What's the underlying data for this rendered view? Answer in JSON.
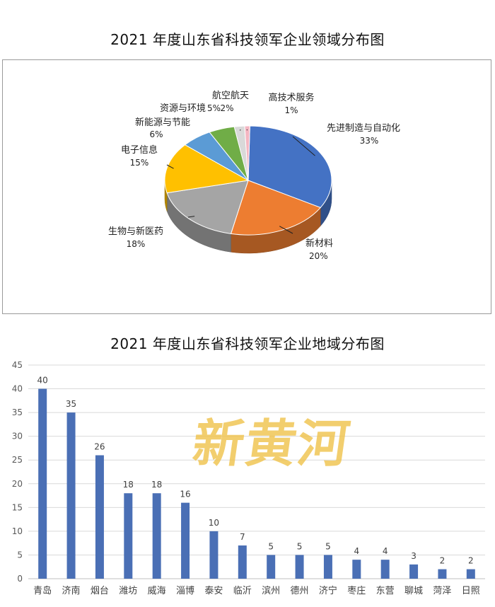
{
  "chart_data": [
    {
      "type": "pie",
      "title": "2021 年度山东省科技领军企业领域分布图",
      "slices": [
        {
          "name": "先进制造与自动化",
          "value": 33,
          "label": "33%",
          "color": "#4472c4"
        },
        {
          "name": "新材料",
          "value": 20,
          "label": "20%",
          "color": "#ed7d31"
        },
        {
          "name": "生物与新医药",
          "value": 18,
          "label": "18%",
          "color": "#a5a5a5"
        },
        {
          "name": "电子信息",
          "value": 15,
          "label": "15%",
          "color": "#ffc000"
        },
        {
          "name": "新能源与节能",
          "value": 6,
          "label": "6%",
          "color": "#5b9bd5"
        },
        {
          "name": "资源与环境",
          "value": 5,
          "label": "5%",
          "color": "#70ad47"
        },
        {
          "name": "航空航天",
          "value": 2,
          "label": "2%",
          "color": "#d9d9d9"
        },
        {
          "name": "高技术服务",
          "value": 1,
          "label": "1%",
          "color": "#f4b6c2"
        }
      ]
    },
    {
      "type": "bar",
      "title": "2021 年度山东省科技领军企业地域分布图",
      "categories": [
        "青岛",
        "济南",
        "烟台",
        "潍坊",
        "威海",
        "淄博",
        "泰安",
        "临沂",
        "滨州",
        "德州",
        "济宁",
        "枣庄",
        "东营",
        "聊城",
        "菏泽",
        "日照"
      ],
      "values": [
        40,
        35,
        26,
        18,
        18,
        16,
        10,
        7,
        5,
        5,
        5,
        4,
        4,
        3,
        2,
        2
      ],
      "ylim": [
        0,
        45
      ],
      "yticks": [
        0,
        5,
        10,
        15,
        20,
        25,
        30,
        35,
        40,
        45
      ],
      "grid": true,
      "bar_color": "#4a6fb5"
    }
  ],
  "watermark": "新黄河"
}
